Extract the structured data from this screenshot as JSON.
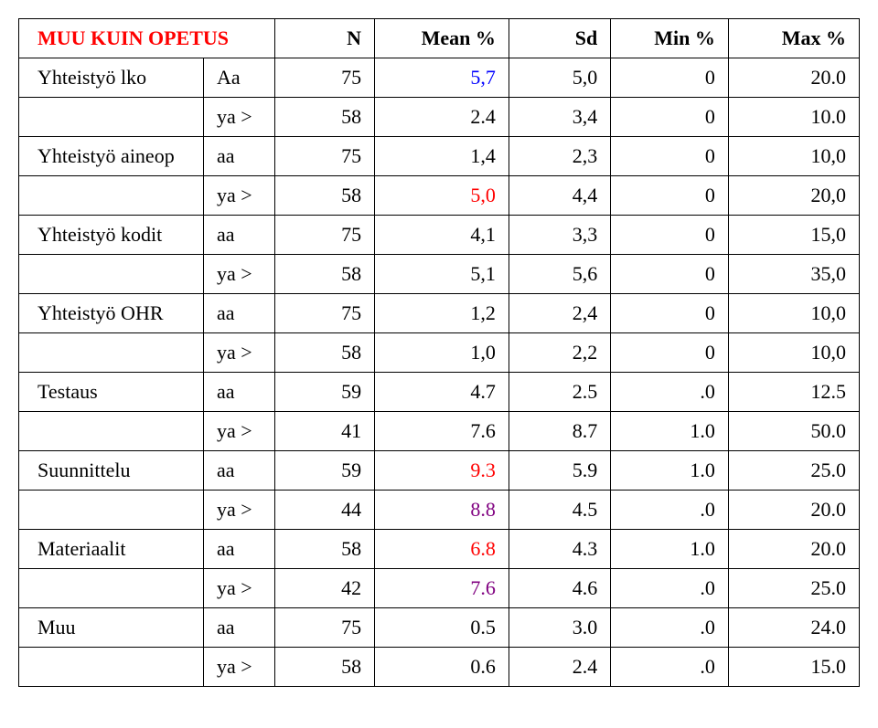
{
  "table": {
    "title": "MUU KUIN OPETUS",
    "title_color": "#ff0000",
    "headers": {
      "n": "N",
      "mean": "Mean %",
      "sd": "Sd",
      "min": "Min %",
      "max": "Max %"
    },
    "colors": {
      "border": "#000000",
      "text": "#000000",
      "accent_blue": "#0000ff",
      "accent_red": "#ff0000",
      "accent_purple": "#800080",
      "background": "#ffffff"
    },
    "font": {
      "family": "Times New Roman",
      "size_pt": 16,
      "header_weight": "bold"
    },
    "rows": [
      {
        "label": "Yhteistyö lko",
        "group": "Aa",
        "n": "75",
        "mean": "5,7",
        "mean_color": "#0000ff",
        "sd": "5,0",
        "min": "0",
        "max": "20.0"
      },
      {
        "label": "",
        "group": "ya >",
        "n": "58",
        "mean": "2.4",
        "mean_color": "#000000",
        "sd": "3,4",
        "min": "0",
        "max": "10.0"
      },
      {
        "label": "Yhteistyö aineop",
        "group": "aa",
        "n": "75",
        "mean": "1,4",
        "mean_color": "#000000",
        "sd": "2,3",
        "min": "0",
        "max": "10,0"
      },
      {
        "label": "",
        "group": "ya >",
        "n": "58",
        "mean": "5,0",
        "mean_color": "#ff0000",
        "sd": "4,4",
        "min": "0",
        "max": "20,0"
      },
      {
        "label": "Yhteistyö kodit",
        "group": "aa",
        "n": "75",
        "mean": "4,1",
        "mean_color": "#000000",
        "sd": "3,3",
        "min": "0",
        "max": "15,0"
      },
      {
        "label": "",
        "group": "ya >",
        "n": "58",
        "mean": "5,1",
        "mean_color": "#000000",
        "sd": "5,6",
        "min": "0",
        "max": "35,0"
      },
      {
        "label": "Yhteistyö OHR",
        "group": "aa",
        "n": "75",
        "mean": "1,2",
        "mean_color": "#000000",
        "sd": "2,4",
        "min": "0",
        "max": "10,0"
      },
      {
        "label": "",
        "group": "ya >",
        "n": "58",
        "mean": "1,0",
        "mean_color": "#000000",
        "sd": "2,2",
        "min": "0",
        "max": "10,0"
      },
      {
        "label": "Testaus",
        "group": "aa",
        "n": "59",
        "mean": "4.7",
        "mean_color": "#000000",
        "sd": "2.5",
        "min": ".0",
        "max": "12.5"
      },
      {
        "label": "",
        "group": "ya >",
        "n": "41",
        "mean": "7.6",
        "mean_color": "#000000",
        "sd": "8.7",
        "min": "1.0",
        "max": "50.0"
      },
      {
        "label": "Suunnittelu",
        "group": "aa",
        "n": "59",
        "mean": "9.3",
        "mean_color": "#ff0000",
        "sd": "5.9",
        "min": "1.0",
        "max": "25.0"
      },
      {
        "label": "",
        "group": "ya >",
        "n": "44",
        "mean": "8.8",
        "mean_color": "#800080",
        "sd": "4.5",
        "min": ".0",
        "max": "20.0"
      },
      {
        "label": "Materiaalit",
        "group": "aa",
        "n": "58",
        "mean": "6.8",
        "mean_color": "#ff0000",
        "sd": "4.3",
        "min": "1.0",
        "max": "20.0"
      },
      {
        "label": "",
        "group": "ya >",
        "n": "42",
        "mean": "7.6",
        "mean_color": "#800080",
        "sd": "4.6",
        "min": ".0",
        "max": "25.0"
      },
      {
        "label": "Muu",
        "group": "aa",
        "n": "75",
        "mean": "0.5",
        "mean_color": "#000000",
        "sd": "3.0",
        "min": ".0",
        "max": "24.0"
      },
      {
        "label": "",
        "group": "ya >",
        "n": "58",
        "mean": "0.6",
        "mean_color": "#000000",
        "sd": "2.4",
        "min": ".0",
        "max": "15.0"
      }
    ]
  }
}
